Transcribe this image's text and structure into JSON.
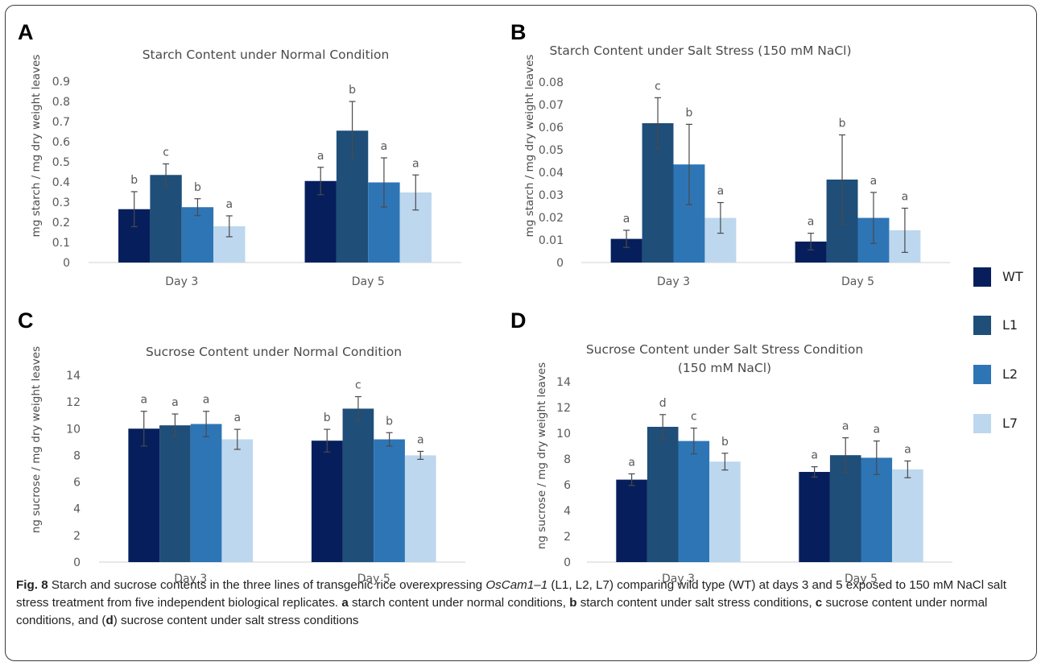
{
  "legend": [
    {
      "name": "WT",
      "color": "#061f5c"
    },
    {
      "name": "L1",
      "color": "#1f4e79"
    },
    {
      "name": "L2",
      "color": "#2e75b6"
    },
    {
      "name": "L7",
      "color": "#bdd7ee"
    }
  ],
  "caption": {
    "fig": "Fig. 8",
    "t1": " Starch and sucrose contents in the three lines of transgenic rice overexpressing ",
    "gene": "OsCam1–1",
    "t2": " (L1, L2, L7) comparing wild type (WT) at days 3 and 5 exposed to 150 mM NaCl salt stress treatment from five independent biological replicates. ",
    "a": "a",
    "ta": " starch content under normal conditions, ",
    "b": "b",
    "tb": " starch content under salt stress conditions, ",
    "c": "c",
    "tc": " sucrose content under normal conditions, and (",
    "d": "d",
    "td": ") sucrose content under salt stress conditions"
  },
  "chart_data": [
    {
      "panel": "A",
      "type": "bar",
      "title": "Starch Content under Normal Condition",
      "ylabel": "mg starch / mg dry weight leaves",
      "ylim": [
        0,
        0.9
      ],
      "yticks": [
        "0",
        "0.1",
        "0.2",
        "0.3",
        "0.4",
        "0.5",
        "0.6",
        "0.7",
        "0.8",
        "0.9"
      ],
      "categories": [
        "Day 3",
        "Day 5"
      ],
      "series": [
        {
          "name": "WT",
          "values": [
            0.265,
            0.405
          ],
          "errors": [
            0.087,
            0.068
          ],
          "letters": [
            "b",
            "a"
          ]
        },
        {
          "name": "L1",
          "values": [
            0.435,
            0.655
          ],
          "errors": [
            0.055,
            0.145
          ],
          "letters": [
            "c",
            "b"
          ]
        },
        {
          "name": "L2",
          "values": [
            0.275,
            0.398
          ],
          "errors": [
            0.042,
            0.122
          ],
          "letters": [
            "b",
            "a"
          ]
        },
        {
          "name": "L7",
          "values": [
            0.18,
            0.348
          ],
          "errors": [
            0.052,
            0.087
          ],
          "letters": [
            "a",
            "a"
          ]
        }
      ],
      "grid": false
    },
    {
      "panel": "B",
      "type": "bar",
      "title": "Starch Content under Salt Stress (150 mM NaCl)",
      "ylabel": "mg starch / mg dry weight leaves",
      "ylim": [
        0,
        0.08
      ],
      "yticks": [
        "0",
        "0.01",
        "0.02",
        "0.03",
        "0.04",
        "0.05",
        "0.06",
        "0.07",
        "0.08"
      ],
      "categories": [
        "Day 3",
        "Day 5"
      ],
      "series": [
        {
          "name": "WT",
          "values": [
            0.0105,
            0.0093
          ],
          "errors": [
            0.0038,
            0.0037
          ],
          "letters": [
            "a",
            "a"
          ]
        },
        {
          "name": "L1",
          "values": [
            0.0618,
            0.0368
          ],
          "errors": [
            0.0113,
            0.0198
          ],
          "letters": [
            "c",
            "b"
          ]
        },
        {
          "name": "L2",
          "values": [
            0.0435,
            0.0198
          ],
          "errors": [
            0.0178,
            0.0113
          ],
          "letters": [
            "b",
            "a"
          ]
        },
        {
          "name": "L7",
          "values": [
            0.0198,
            0.0143
          ],
          "errors": [
            0.0068,
            0.0098
          ],
          "letters": [
            "a",
            "a"
          ]
        }
      ],
      "grid": false
    },
    {
      "panel": "C",
      "type": "bar",
      "title": "Sucrose Content under Normal Condition",
      "ylabel": "ng sucrose / mg dry weight leaves",
      "ylim": [
        0,
        14
      ],
      "yticks": [
        "0",
        "2",
        "4",
        "6",
        "8",
        "10",
        "12",
        "14"
      ],
      "categories": [
        "Day 3",
        "Day 5"
      ],
      "series": [
        {
          "name": "WT",
          "values": [
            10.0,
            9.1
          ],
          "errors": [
            1.3,
            0.85
          ],
          "letters": [
            "a",
            "b"
          ]
        },
        {
          "name": "L1",
          "values": [
            10.25,
            11.5
          ],
          "errors": [
            0.85,
            0.9
          ],
          "letters": [
            "a",
            "c"
          ]
        },
        {
          "name": "L2",
          "values": [
            10.35,
            9.2
          ],
          "errors": [
            0.95,
            0.5
          ],
          "letters": [
            "a",
            "b"
          ]
        },
        {
          "name": "L7",
          "values": [
            9.2,
            8.0
          ],
          "errors": [
            0.75,
            0.3
          ],
          "letters": [
            "a",
            "a"
          ]
        }
      ],
      "grid": false
    },
    {
      "panel": "D",
      "type": "bar",
      "title": "Sucrose Content under Salt Stress Condition",
      "subtitle": "(150 mM NaCl)",
      "ylabel": "ng sucrose / mg dry weight leaves",
      "ylim": [
        0,
        14
      ],
      "yticks": [
        "0",
        "2",
        "4",
        "6",
        "8",
        "10",
        "12",
        "14"
      ],
      "categories": [
        "Day 3",
        "Day 5"
      ],
      "series": [
        {
          "name": "WT",
          "values": [
            6.4,
            7.0
          ],
          "errors": [
            0.45,
            0.4
          ],
          "letters": [
            "a",
            "a"
          ]
        },
        {
          "name": "L1",
          "values": [
            10.5,
            8.3
          ],
          "errors": [
            0.95,
            1.35
          ],
          "letters": [
            "d",
            "a"
          ]
        },
        {
          "name": "L2",
          "values": [
            9.4,
            8.1
          ],
          "errors": [
            1.0,
            1.3
          ],
          "letters": [
            "c",
            "a"
          ]
        },
        {
          "name": "L7",
          "values": [
            7.8,
            7.2
          ],
          "errors": [
            0.65,
            0.65
          ],
          "letters": [
            "b",
            "a"
          ]
        }
      ],
      "grid": false
    }
  ]
}
